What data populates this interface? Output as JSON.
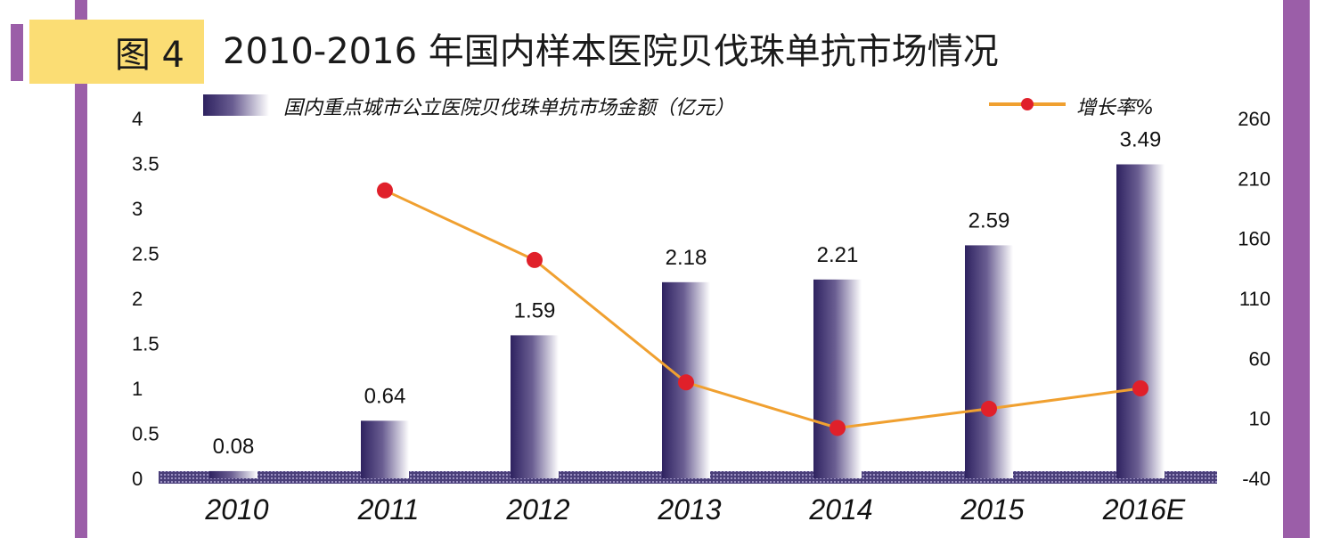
{
  "figure": {
    "label": "图 4",
    "title": "2010-2016 年国内样本医院贝伐珠单抗市场情况"
  },
  "colors": {
    "frame": "#9b5ea8",
    "label_bg": "#fbdd74",
    "bar_dark": "#3a2c66",
    "line": "#f0a030",
    "marker": "#e0202a"
  },
  "chart_data": {
    "type": "bar",
    "categories": [
      "2010",
      "2011",
      "2012",
      "2013",
      "2014",
      "2015",
      "2016E"
    ],
    "series": [
      {
        "name": "国内重点城市公立医院贝伐珠单抗市场金额（亿元）",
        "type": "bar",
        "axis": "left",
        "values": [
          0.08,
          0.64,
          1.59,
          2.18,
          2.21,
          2.59,
          3.49
        ],
        "data_labels": [
          "0.08",
          "0.64",
          "1.59",
          "2.18",
          "2.21",
          "2.59",
          "3.49"
        ]
      },
      {
        "name": "增长率%",
        "type": "line",
        "axis": "right",
        "values": [
          null,
          200,
          142,
          40,
          2,
          18,
          35
        ]
      }
    ],
    "y_left": {
      "range": [
        0,
        4
      ],
      "ticks": [
        "0",
        "0.5",
        "1",
        "1.5",
        "2",
        "2.5",
        "3",
        "3.5",
        "4"
      ]
    },
    "y_right": {
      "range": [
        -40,
        260
      ],
      "ticks": [
        "-40",
        "10",
        "60",
        "110",
        "160",
        "210",
        "260"
      ]
    },
    "legend_position": "top",
    "grid": false
  }
}
